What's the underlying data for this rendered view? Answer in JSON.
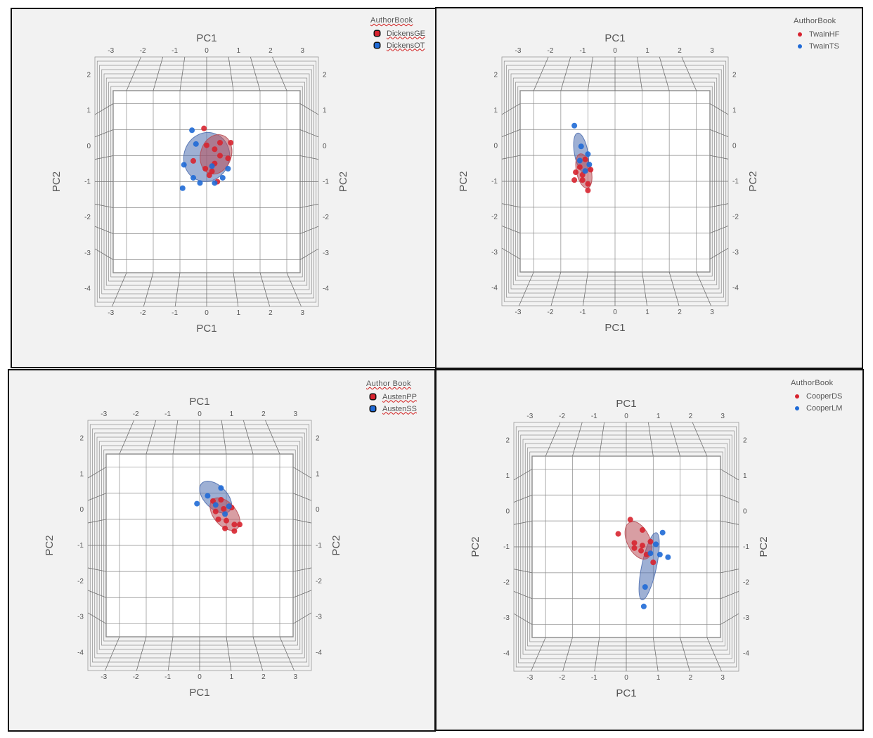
{
  "page": {
    "background": "#ffffff",
    "panel_background": "#f2f2f2",
    "border_color": "#111111"
  },
  "colors": {
    "red_series": "#d7232f",
    "blue_series": "#1f6ad6",
    "red_ellipse": "#b84f57",
    "blue_ellipse": "#4f6fb0",
    "legend_squiggle": "#d21e1e"
  },
  "chart_data": [
    {
      "type": "scatter",
      "view": "3d box viewed along PC3 axis with 95% density ellipsoids",
      "title_top": "PC1",
      "xlabel": "PC1",
      "ylabel": "PC2",
      "xticks": [
        "-3",
        "-2",
        "-1",
        "0",
        "1",
        "2",
        "3"
      ],
      "yticks": [
        "2",
        "1",
        "0",
        "-1",
        "-2",
        "-3",
        "-4"
      ],
      "xlim": [
        -3.5,
        3.5
      ],
      "ylim": [
        -4.5,
        2.5
      ],
      "legend": {
        "title": "AuthorBook",
        "placement": "top-right",
        "style": "marker-boxed-squiggle"
      },
      "series": [
        {
          "name": "DickensGE",
          "color": "red",
          "points": [
            [
              -0.1,
              1.05
            ],
            [
              0.5,
              0.5
            ],
            [
              0.9,
              0.5
            ],
            [
              0.3,
              0.25
            ],
            [
              0.5,
              0.0
            ],
            [
              0.3,
              -0.3
            ],
            [
              -0.05,
              -0.5
            ],
            [
              0.1,
              -0.75
            ],
            [
              0.4,
              -1.0
            ],
            [
              -0.5,
              -0.2
            ],
            [
              0.0,
              0.4
            ],
            [
              0.8,
              -0.1
            ],
            [
              0.2,
              -0.6
            ]
          ],
          "ellipse": {
            "cx": 0.35,
            "cy": 0.05,
            "rx": 1.15,
            "ry": 1.55,
            "rot": 18
          }
        },
        {
          "name": "DickensOT",
          "color": "blue",
          "points": [
            [
              -0.55,
              0.98
            ],
            [
              -0.4,
              0.45
            ],
            [
              -0.85,
              -0.35
            ],
            [
              -0.5,
              -0.85
            ],
            [
              -0.25,
              -1.05
            ],
            [
              0.3,
              -1.05
            ],
            [
              0.8,
              -0.5
            ],
            [
              0.6,
              -0.85
            ],
            [
              -0.9,
              -1.25
            ],
            [
              0.2,
              -0.4
            ]
          ],
          "ellipse": {
            "cx": 0.0,
            "cy": -0.05,
            "rx": 1.7,
            "ry": 1.9,
            "rot": 20
          }
        }
      ]
    },
    {
      "type": "scatter",
      "view": "3d box viewed along PC3 axis with 95% density ellipsoids",
      "title_top": "PC1",
      "xlabel": "PC1",
      "ylabel": "PC2",
      "xticks": [
        "-3",
        "-2",
        "-1",
        "0",
        "1",
        "2",
        "3"
      ],
      "yticks": [
        "2",
        "1",
        "0",
        "-1",
        "-2",
        "-3",
        "-4"
      ],
      "xlim": [
        -3.5,
        3.5
      ],
      "ylim": [
        -4.5,
        2.5
      ],
      "legend": {
        "title": "AuthorBook",
        "placement": "top-right",
        "style": "dot"
      },
      "series": [
        {
          "name": "TwainHF",
          "color": "red",
          "points": [
            [
              -1.1,
              -0.15
            ],
            [
              -1.3,
              -0.45
            ],
            [
              -0.9,
              -0.55
            ],
            [
              -1.45,
              -0.65
            ],
            [
              -1.2,
              -0.95
            ],
            [
              -1.0,
              -1.1
            ],
            [
              -1.5,
              -0.95
            ],
            [
              -1.0,
              -1.35
            ],
            [
              -1.2,
              -0.75
            ]
          ],
          "ellipse": {
            "cx": -1.15,
            "cy": -0.6,
            "rx": 0.55,
            "ry": 1.35,
            "rot": -12
          }
        },
        {
          "name": "TwainTS",
          "color": "blue",
          "points": [
            [
              -1.5,
              1.15
            ],
            [
              -1.0,
              0.05
            ],
            [
              -1.3,
              -0.2
            ],
            [
              -0.95,
              -0.35
            ],
            [
              -1.1,
              -0.6
            ],
            [
              -1.25,
              0.35
            ]
          ],
          "ellipse": {
            "cx": -1.25,
            "cy": 0.1,
            "rx": 0.5,
            "ry": 1.55,
            "rot": -10
          }
        }
      ]
    },
    {
      "type": "scatter",
      "view": "3d box viewed along PC3 axis with 95% density ellipsoids",
      "title_top": "PC1",
      "xlabel": "PC1",
      "ylabel": "PC2",
      "xticks": [
        "-3",
        "-2",
        "-1",
        "0",
        "1",
        "2",
        "3"
      ],
      "yticks": [
        "2",
        "1",
        "0",
        "-1",
        "-2",
        "-3",
        "-4"
      ],
      "xlim": [
        -3.5,
        3.5
      ],
      "ylim": [
        -4.5,
        2.5
      ],
      "legend": {
        "title": "Author Book",
        "placement": "top-right",
        "style": "marker-boxed-squiggle"
      },
      "series": [
        {
          "name": "AustenPP",
          "color": "red",
          "points": [
            [
              0.9,
              0.4
            ],
            [
              1.2,
              0.45
            ],
            [
              0.7,
              0.0
            ],
            [
              1.0,
              -0.05
            ],
            [
              1.3,
              -0.2
            ],
            [
              1.5,
              -0.2
            ],
            [
              0.95,
              -0.35
            ],
            [
              1.3,
              -0.45
            ],
            [
              0.6,
              0.3
            ],
            [
              0.5,
              0.7
            ],
            [
              0.8,
              0.75
            ]
          ],
          "ellipse": {
            "cx": 0.95,
            "cy": 0.2,
            "rx": 0.85,
            "ry": 1.45,
            "rot": -40
          }
        },
        {
          "name": "AustenSS",
          "color": "blue",
          "points": [
            [
              0.8,
              1.2
            ],
            [
              0.3,
              0.9
            ],
            [
              -0.1,
              0.6
            ],
            [
              1.1,
              0.5
            ],
            [
              0.6,
              0.55
            ],
            [
              0.95,
              0.2
            ]
          ],
          "ellipse": {
            "cx": 0.6,
            "cy": 0.85,
            "rx": 0.85,
            "ry": 1.5,
            "rot": -45
          }
        }
      ]
    },
    {
      "type": "scatter",
      "view": "3d box viewed along PC3 axis with 95% density ellipsoids",
      "title_top": "PC1",
      "xlabel": "PC1",
      "ylabel": "PC2",
      "xticks": [
        "-3",
        "-2",
        "-1",
        "0",
        "1",
        "2",
        "3"
      ],
      "yticks": [
        "2",
        "1",
        "0",
        "-1",
        "-2",
        "-3",
        "-4"
      ],
      "xlim": [
        -3.5,
        3.5
      ],
      "ylim": [
        -4.5,
        2.5
      ],
      "legend": {
        "title": "AuthorBook",
        "placement": "top-right",
        "style": "dot"
      },
      "series": [
        {
          "name": "CooperDS",
          "color": "red",
          "points": [
            [
              0.15,
              0.05
            ],
            [
              -0.3,
              -0.5
            ],
            [
              0.6,
              -0.35
            ],
            [
              0.3,
              -0.85
            ],
            [
              0.9,
              -0.8
            ],
            [
              0.55,
              -1.15
            ],
            [
              0.75,
              -1.3
            ],
            [
              1.0,
              -1.6
            ],
            [
              0.3,
              -1.05
            ],
            [
              0.6,
              -0.95
            ]
          ],
          "ellipse": {
            "cx": 0.45,
            "cy": -0.75,
            "rx": 0.85,
            "ry": 1.55,
            "rot": -25
          }
        },
        {
          "name": "CooperLM",
          "color": "blue",
          "points": [
            [
              1.35,
              -0.45
            ],
            [
              1.1,
              -0.9
            ],
            [
              1.25,
              -1.3
            ],
            [
              1.55,
              -1.4
            ],
            [
              0.9,
              -1.25
            ],
            [
              0.7,
              -2.55
            ],
            [
              0.65,
              -3.3
            ]
          ],
          "ellipse": {
            "cx": 0.85,
            "cy": -1.75,
            "rx": 0.55,
            "ry": 2.65,
            "rot": 12
          }
        }
      ]
    }
  ]
}
